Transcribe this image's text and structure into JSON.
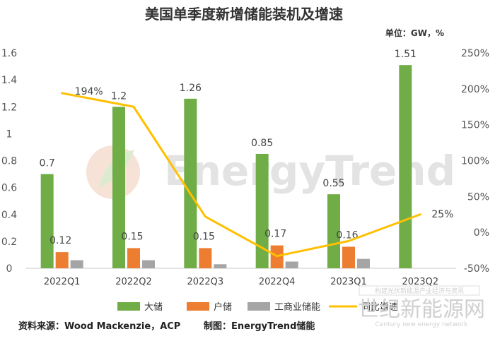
{
  "chart_data": {
    "type": "bar",
    "title": "美国单季度新增储能装机及增速",
    "unit_label": "单位：GW，%",
    "categories": [
      "2022Q1",
      "2022Q2",
      "2022Q3",
      "2022Q4",
      "2023Q1",
      "2023Q2"
    ],
    "series": [
      {
        "name": "大储",
        "kind": "bar",
        "axis": "left",
        "color": "#70ad47",
        "values": [
          0.7,
          1.2,
          1.26,
          0.85,
          0.55,
          1.51
        ],
        "labels": [
          "0.7",
          "1.2",
          "1.26",
          "0.85",
          "0.55",
          "1.51"
        ]
      },
      {
        "name": "户储",
        "kind": "bar",
        "axis": "left",
        "color": "#ed7d31",
        "values": [
          0.12,
          0.15,
          0.15,
          0.17,
          0.16,
          null
        ],
        "labels": [
          "0.12",
          "0.15",
          "0.15",
          "0.17",
          "0.16",
          ""
        ]
      },
      {
        "name": "工商业储能",
        "kind": "bar",
        "axis": "left",
        "color": "#a5a5a5",
        "values": [
          0.06,
          0.06,
          0.03,
          0.05,
          0.07,
          null
        ],
        "labels": []
      },
      {
        "name": "同比增速",
        "kind": "line",
        "axis": "right",
        "color": "#ffc000",
        "values": [
          194,
          175,
          22,
          -33,
          -12,
          25
        ],
        "labels": [
          "194%",
          "",
          "",
          "",
          "",
          "25%"
        ]
      }
    ],
    "y_left": {
      "min": 0,
      "max": 1.6,
      "ticks": [
        0,
        0.2,
        0.4,
        0.6,
        0.8,
        1,
        1.2,
        1.4,
        1.6
      ],
      "tick_labels": [
        "0",
        "0.2",
        "0.4",
        "0.6",
        "0.8",
        "1",
        "1.2",
        "1.4",
        "1.6"
      ]
    },
    "y_right": {
      "min": -50,
      "max": 250,
      "ticks": [
        -50,
        0,
        50,
        100,
        150,
        200,
        250
      ],
      "tick_labels": [
        "-50%",
        "0%",
        "50%",
        "100%",
        "150%",
        "200%",
        "250%"
      ]
    },
    "grid": false,
    "legend_position": "bottom"
  },
  "source_text": "资料来源：Wood Mackenzie，ACP",
  "made_by_text": "制图：EnergyTrend储能",
  "watermark_text": "EnergyTrend",
  "corner_logo_text": "世纪新能源网",
  "corner_logo_sub": "Century new energy network",
  "corner_logo_top": "构建光伏新能源产业经济与资讯"
}
